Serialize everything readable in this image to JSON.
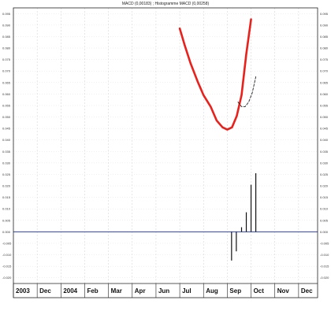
{
  "chart_data": {
    "type": "line",
    "title": "MACD (0,00183) ; Histogramme MACD (0,00258)",
    "xlabel": "",
    "ylabel": "",
    "x_ticks": [
      "2003",
      "Dec",
      "2004",
      "Feb",
      "Mar",
      "Apr",
      "Jun",
      "Jul",
      "Aug",
      "Sep",
      "Oct",
      "Nov",
      "Dec"
    ],
    "y_ticks": [
      "0.095",
      "0.090",
      "0.085",
      "0.080",
      "0.075",
      "0.070",
      "0.065",
      "0.060",
      "0.055",
      "0.050",
      "0.045",
      "0.040",
      "0.035",
      "0.030",
      "0.025",
      "0.020",
      "0.015",
      "0.010",
      "0.005",
      "0.000",
      "-0.005",
      "-0.010",
      "-0.015",
      "-0.020"
    ],
    "ylim": [
      -0.0225,
      0.0975
    ],
    "grid": true,
    "x_range": [
      0,
      12.8
    ],
    "zero_line": 0.0,
    "series": [
      {
        "style": "solid",
        "color": "#e8211c",
        "x": [
          7.0,
          7.2,
          7.45,
          7.75,
          8.0,
          8.3,
          8.55,
          8.8,
          9.0,
          9.2,
          9.4,
          9.6,
          9.8,
          10.0
        ],
        "y": [
          0.0885,
          0.0815,
          0.0735,
          0.0655,
          0.0595,
          0.0545,
          0.0485,
          0.0455,
          0.0445,
          0.0455,
          0.0505,
          0.0595,
          0.0775,
          0.0925
        ]
      },
      {
        "style": "dashed",
        "color": "#222222",
        "x": [
          9.45,
          9.6,
          9.75,
          9.9,
          10.05,
          10.2
        ],
        "y": [
          0.0565,
          0.0545,
          0.0545,
          0.0565,
          0.0605,
          0.0675
        ]
      },
      {
        "style": "bars",
        "color": "#111111",
        "x": [
          9.18,
          9.38,
          9.6,
          9.8,
          10.0,
          10.2
        ],
        "y": [
          -0.0125,
          -0.0085,
          0.002,
          0.0085,
          0.0205,
          0.0255
        ]
      }
    ]
  }
}
